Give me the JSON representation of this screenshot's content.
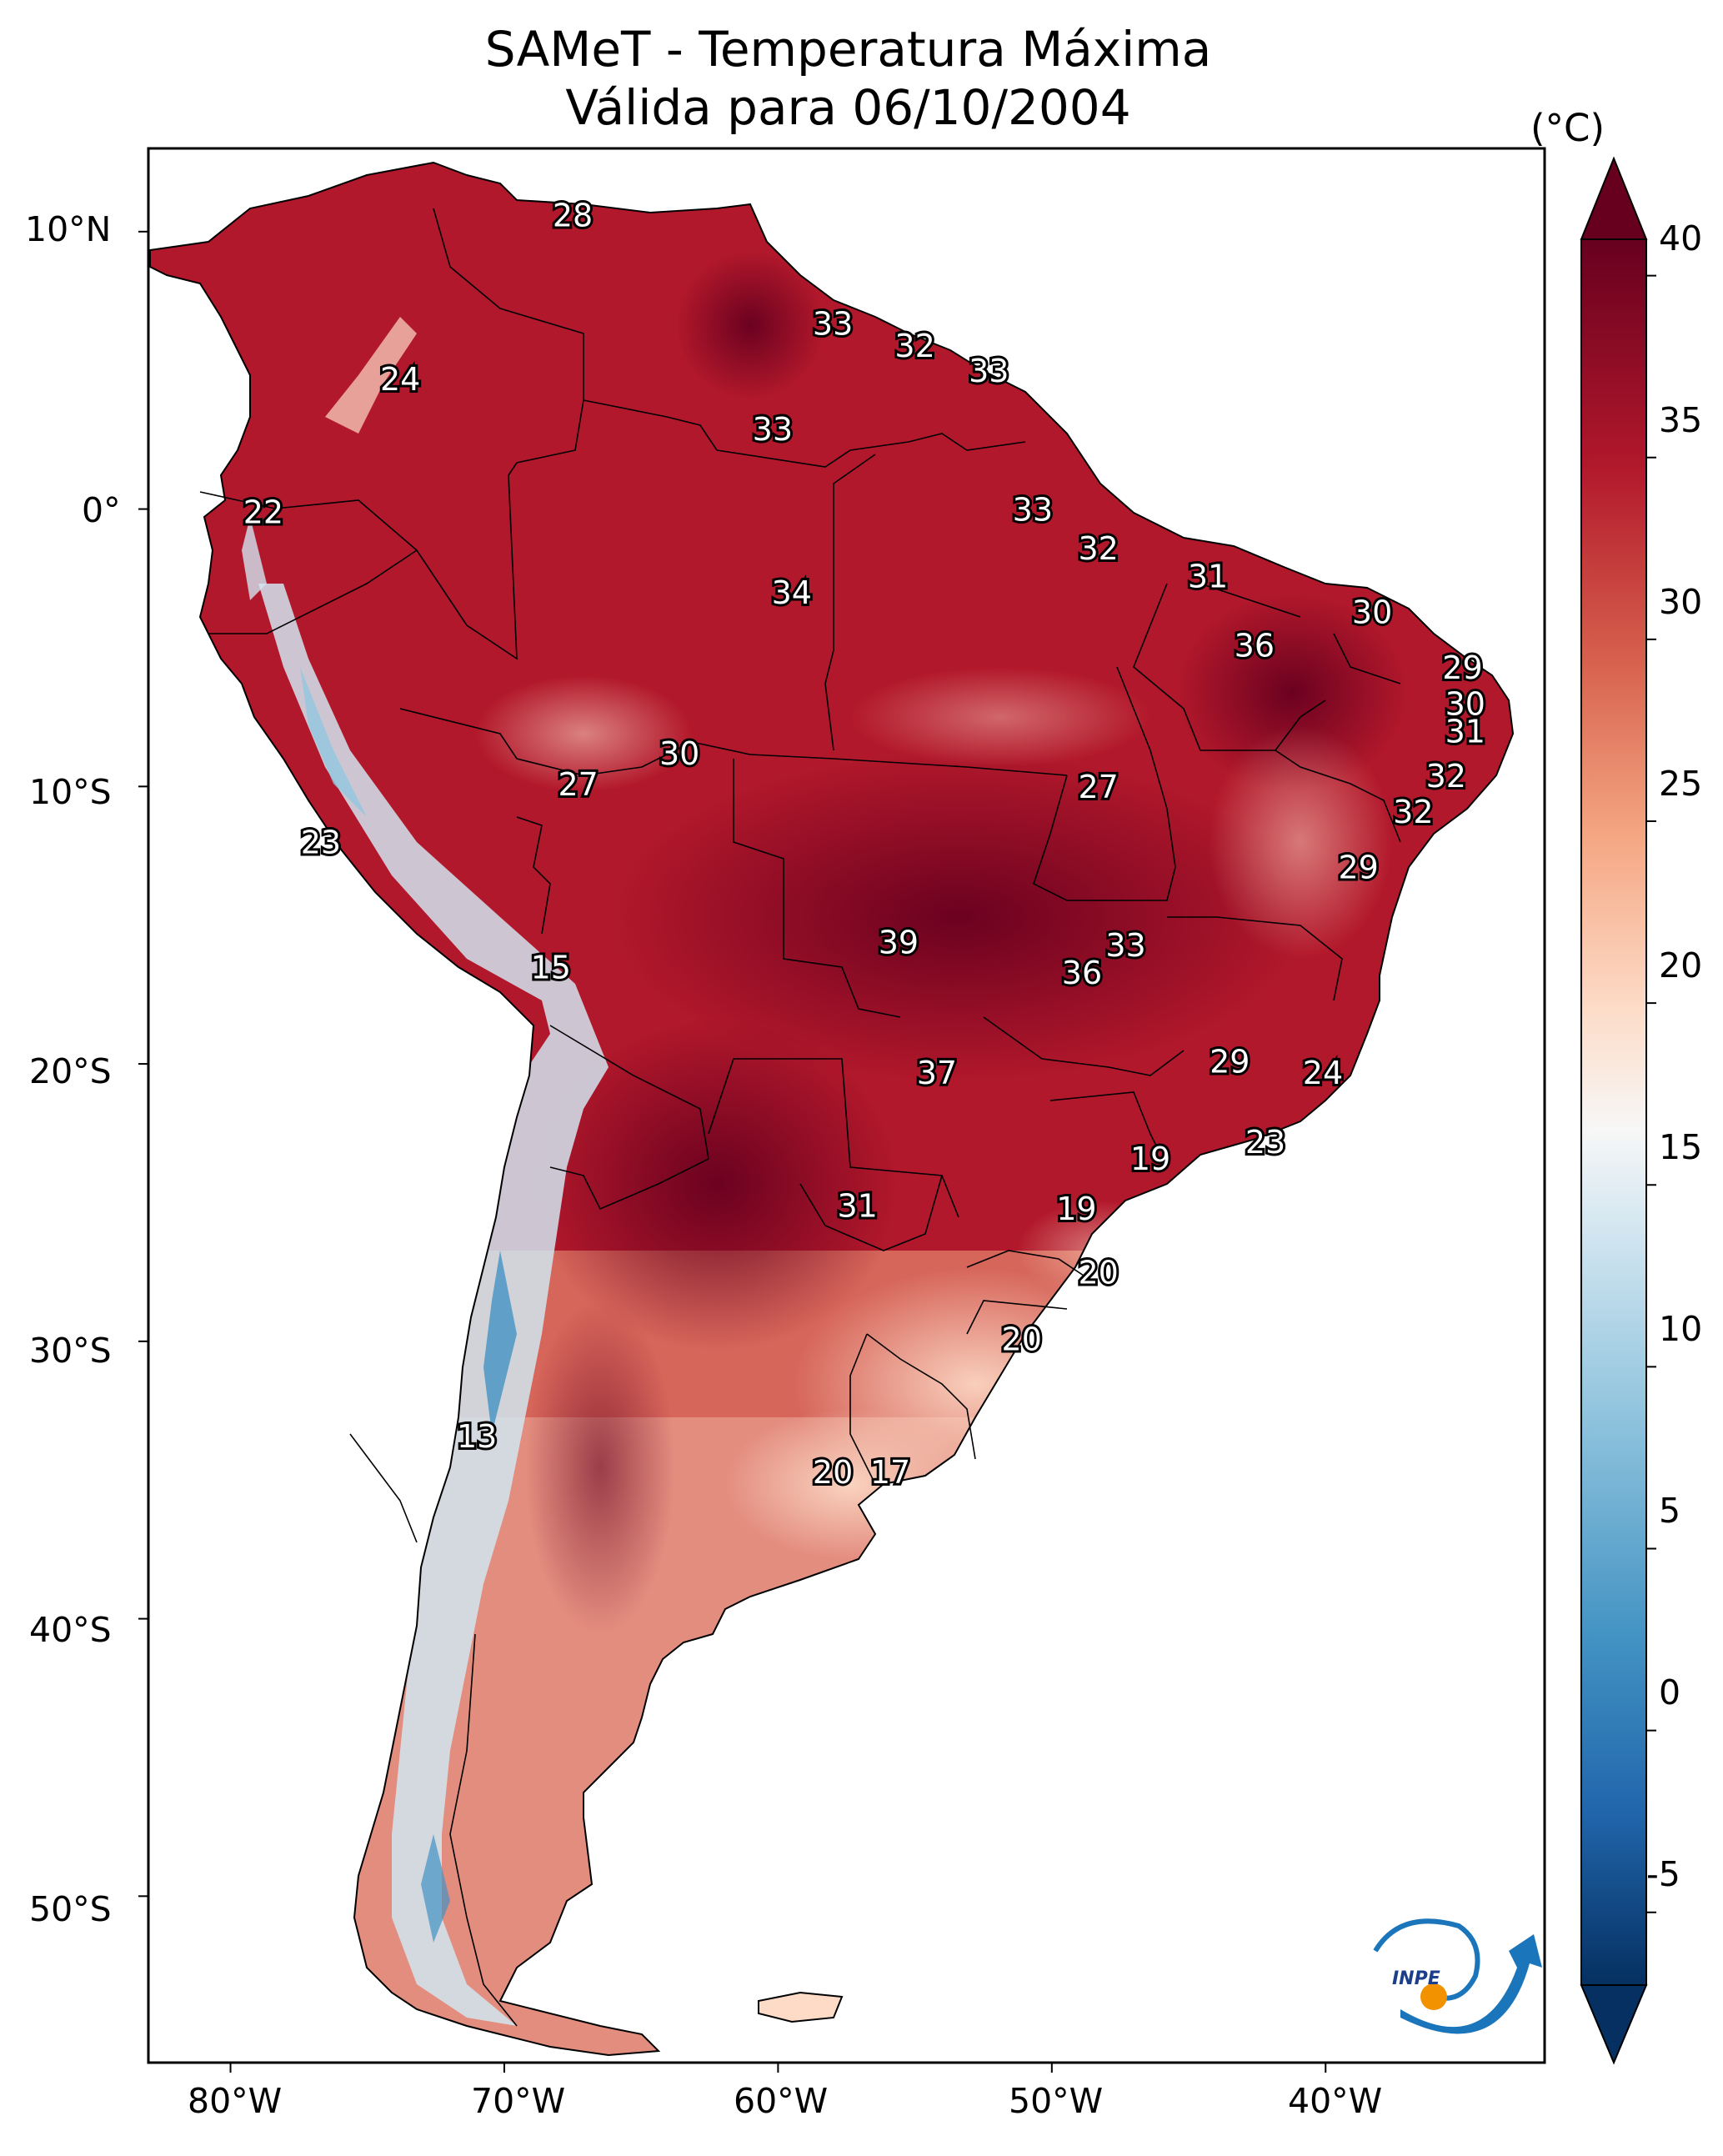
{
  "title": {
    "line1": "SAMeT - Temperatura Máxima",
    "line2": "Válida para 06/10/2004"
  },
  "axes": {
    "lat_ticks": [
      "10°N",
      "0°",
      "10°S",
      "20°S",
      "30°S",
      "40°S",
      "50°S"
    ],
    "lon_ticks": [
      "80°W",
      "70°W",
      "60°W",
      "50°W",
      "40°W"
    ]
  },
  "colorbar": {
    "unit": "(°C)",
    "ticks": [
      "40",
      "35",
      "30",
      "25",
      "20",
      "15",
      "10",
      "5",
      "0",
      "-5"
    ],
    "range": [
      -7,
      41
    ],
    "colormap": "RdBu_r",
    "extend": "both",
    "colors": [
      "#053061",
      "#2166ac",
      "#4393c3",
      "#92c5de",
      "#d1e5f0",
      "#f7f7f7",
      "#fddbc7",
      "#f4a582",
      "#d6604d",
      "#b2182b",
      "#67001f"
    ]
  },
  "map_labels": [
    {
      "value": "28",
      "lon": -67.5,
      "lat": 10.5
    },
    {
      "value": "33",
      "lon": -58.0,
      "lat": 6.6
    },
    {
      "value": "32",
      "lon": -55.0,
      "lat": 5.8
    },
    {
      "value": "33",
      "lon": -52.3,
      "lat": 4.9
    },
    {
      "value": "24",
      "lon": -73.8,
      "lat": 4.6
    },
    {
      "value": "33",
      "lon": -60.2,
      "lat": 2.8
    },
    {
      "value": "22",
      "lon": -78.8,
      "lat": -0.2
    },
    {
      "value": "33",
      "lon": -50.7,
      "lat": -0.1
    },
    {
      "value": "32",
      "lon": -48.3,
      "lat": -1.5
    },
    {
      "value": "31",
      "lon": -44.3,
      "lat": -2.5
    },
    {
      "value": "34",
      "lon": -59.5,
      "lat": -3.1
    },
    {
      "value": "30",
      "lon": -38.3,
      "lat": -3.8
    },
    {
      "value": "36",
      "lon": -42.6,
      "lat": -5.0
    },
    {
      "value": "29",
      "lon": -35.0,
      "lat": -5.8
    },
    {
      "value": "30",
      "lon": -34.9,
      "lat": -7.1
    },
    {
      "value": "31",
      "lon": -34.9,
      "lat": -8.1
    },
    {
      "value": "30",
      "lon": -63.6,
      "lat": -8.9
    },
    {
      "value": "32",
      "lon": -35.6,
      "lat": -9.7
    },
    {
      "value": "27",
      "lon": -67.3,
      "lat": -10.0
    },
    {
      "value": "27",
      "lon": -48.3,
      "lat": -10.1
    },
    {
      "value": "32",
      "lon": -36.8,
      "lat": -11.0
    },
    {
      "value": "23",
      "lon": -76.7,
      "lat": -12.1
    },
    {
      "value": "29",
      "lon": -38.8,
      "lat": -13.0
    },
    {
      "value": "39",
      "lon": -55.6,
      "lat": -15.7
    },
    {
      "value": "33",
      "lon": -47.3,
      "lat": -15.8
    },
    {
      "value": "36",
      "lon": -48.9,
      "lat": -16.8
    },
    {
      "value": "15",
      "lon": -68.3,
      "lat": -16.6
    },
    {
      "value": "29",
      "lon": -43.5,
      "lat": -20.0
    },
    {
      "value": "24",
      "lon": -40.1,
      "lat": -20.4
    },
    {
      "value": "37",
      "lon": -54.2,
      "lat": -20.4
    },
    {
      "value": "23",
      "lon": -42.2,
      "lat": -22.9
    },
    {
      "value": "19",
      "lon": -46.4,
      "lat": -23.5
    },
    {
      "value": "31",
      "lon": -57.1,
      "lat": -25.2
    },
    {
      "value": "19",
      "lon": -49.1,
      "lat": -25.3
    },
    {
      "value": "20",
      "lon": -48.3,
      "lat": -27.6
    },
    {
      "value": "20",
      "lon": -51.1,
      "lat": -30.0
    },
    {
      "value": "13",
      "lon": -71.0,
      "lat": -33.5
    },
    {
      "value": "20",
      "lon": -58.0,
      "lat": -34.8
    },
    {
      "value": "17",
      "lon": -55.9,
      "lat": -34.8
    }
  ],
  "logo": {
    "text": "INPE"
  }
}
